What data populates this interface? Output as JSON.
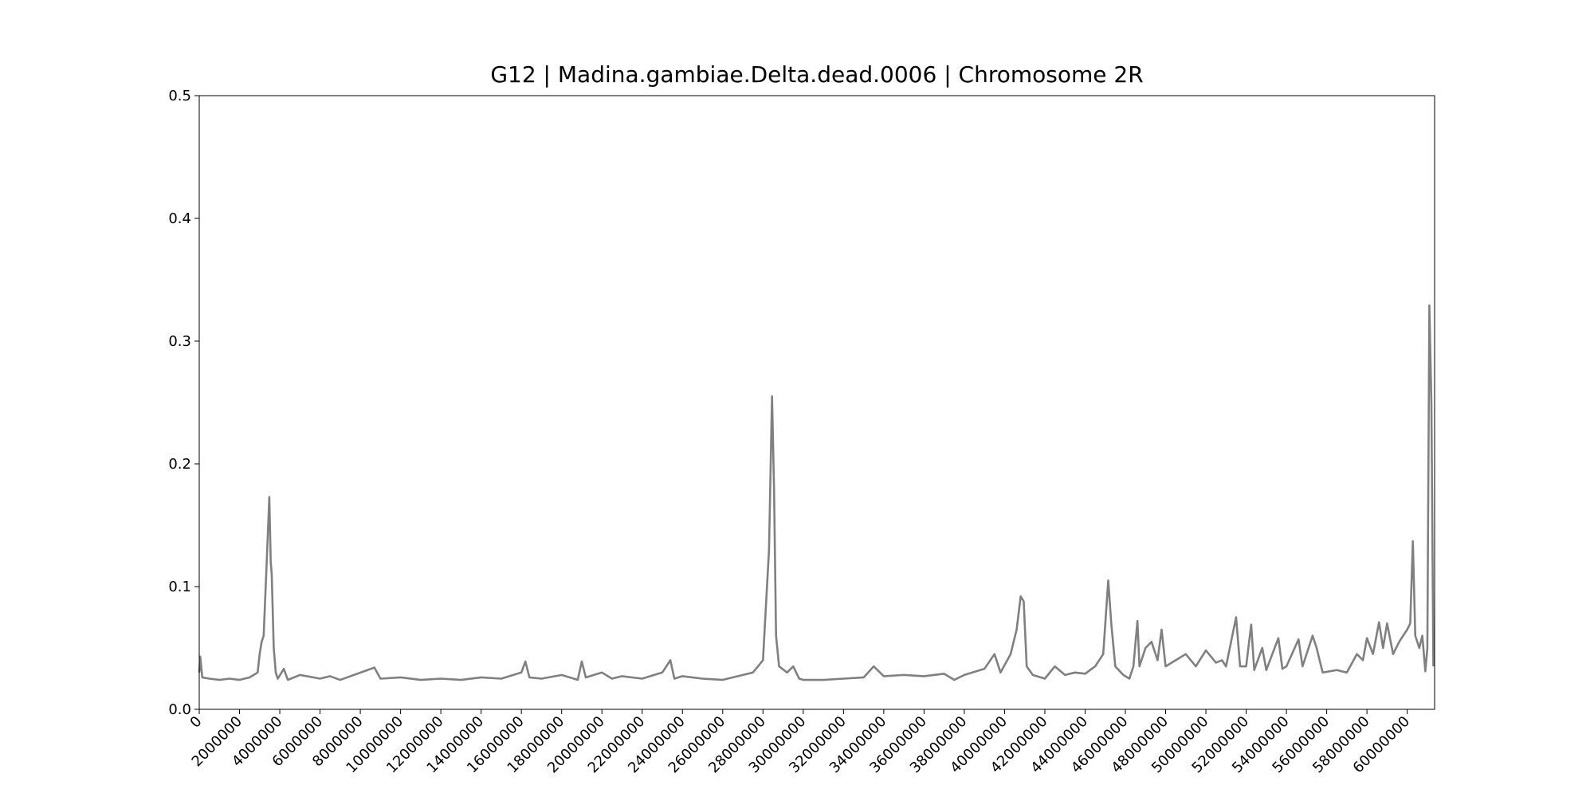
{
  "chart_data": {
    "type": "line",
    "title": "G12 | Madina.gambiae.Delta.dead.0006 | Chromosome 2R",
    "color": "#808080",
    "x": [
      0,
      50000,
      150000,
      500000,
      1000000,
      1500000,
      2000000,
      2500000,
      2900000,
      3000000,
      3100000,
      3200000,
      3300000,
      3400000,
      3480000,
      3550000,
      3600000,
      3700000,
      3800000,
      3900000,
      4200000,
      4400000,
      5000000,
      6000000,
      6500000,
      7000000,
      8700000,
      9000000,
      10000000,
      11000000,
      12000000,
      13000000,
      14000000,
      15000000,
      16000000,
      16200000,
      16400000,
      17000000,
      18000000,
      18800000,
      19000000,
      19200000,
      20000000,
      20500000,
      21000000,
      22000000,
      23000000,
      23400000,
      23600000,
      24000000,
      25000000,
      26000000,
      27000000,
      27500000,
      28000000,
      28300000,
      28450000,
      28550000,
      28650000,
      28800000,
      29200000,
      29500000,
      29800000,
      30000000,
      31000000,
      32000000,
      33000000,
      33500000,
      34000000,
      35000000,
      36000000,
      37000000,
      37500000,
      38000000,
      39000000,
      39500000,
      39800000,
      40300000,
      40600000,
      40800000,
      40950000,
      41100000,
      41400000,
      42000000,
      42500000,
      43000000,
      43500000,
      44000000,
      44500000,
      44900000,
      45150000,
      45300000,
      45500000,
      45900000,
      46200000,
      46400000,
      46600000,
      46700000,
      47000000,
      47300000,
      47600000,
      47800000,
      48000000,
      48500000,
      49000000,
      49500000,
      50000000,
      50500000,
      50800000,
      51000000,
      51500000,
      51700000,
      52000000,
      52250000,
      52400000,
      52800000,
      53000000,
      53600000,
      53800000,
      54000000,
      54600000,
      54800000,
      55300000,
      55500000,
      55800000,
      56500000,
      57000000,
      57500000,
      57800000,
      58000000,
      58300000,
      58600000,
      58800000,
      59000000,
      59300000,
      59600000,
      60000000,
      60150000,
      60280000,
      60400000,
      60600000,
      60750000,
      60900000,
      61000000,
      61100000,
      61200000,
      61300000
    ],
    "values": [
      0.03,
      0.043,
      0.026,
      0.025,
      0.024,
      0.025,
      0.024,
      0.026,
      0.03,
      0.045,
      0.055,
      0.06,
      0.1,
      0.14,
      0.173,
      0.12,
      0.11,
      0.05,
      0.03,
      0.025,
      0.033,
      0.024,
      0.028,
      0.025,
      0.027,
      0.024,
      0.034,
      0.025,
      0.026,
      0.024,
      0.025,
      0.024,
      0.026,
      0.025,
      0.03,
      0.039,
      0.026,
      0.025,
      0.028,
      0.024,
      0.039,
      0.026,
      0.03,
      0.025,
      0.027,
      0.025,
      0.03,
      0.04,
      0.025,
      0.027,
      0.025,
      0.024,
      0.028,
      0.03,
      0.04,
      0.13,
      0.255,
      0.18,
      0.06,
      0.035,
      0.03,
      0.035,
      0.025,
      0.024,
      0.024,
      0.025,
      0.026,
      0.035,
      0.027,
      0.028,
      0.027,
      0.029,
      0.024,
      0.028,
      0.033,
      0.045,
      0.03,
      0.045,
      0.065,
      0.092,
      0.088,
      0.035,
      0.028,
      0.025,
      0.035,
      0.028,
      0.03,
      0.029,
      0.035,
      0.045,
      0.105,
      0.07,
      0.035,
      0.028,
      0.025,
      0.035,
      0.072,
      0.035,
      0.05,
      0.055,
      0.04,
      0.065,
      0.035,
      0.04,
      0.045,
      0.035,
      0.048,
      0.038,
      0.04,
      0.035,
      0.075,
      0.035,
      0.035,
      0.069,
      0.032,
      0.05,
      0.032,
      0.058,
      0.033,
      0.035,
      0.057,
      0.035,
      0.06,
      0.05,
      0.03,
      0.032,
      0.03,
      0.045,
      0.04,
      0.058,
      0.045,
      0.071,
      0.05,
      0.07,
      0.045,
      0.055,
      0.065,
      0.07,
      0.137,
      0.06,
      0.05,
      0.06,
      0.031,
      0.05,
      0.329,
      0.25,
      0.035
    ],
    "xlim": [
      0,
      61360000
    ],
    "xticks": [
      0,
      2000000,
      4000000,
      6000000,
      8000000,
      10000000,
      12000000,
      14000000,
      16000000,
      18000000,
      20000000,
      22000000,
      24000000,
      26000000,
      28000000,
      30000000,
      32000000,
      34000000,
      36000000,
      38000000,
      40000000,
      42000000,
      44000000,
      46000000,
      48000000,
      50000000,
      52000000,
      54000000,
      56000000,
      58000000,
      60000000
    ],
    "ylim": [
      0,
      0.5
    ],
    "yticks": [
      {
        "value": 0,
        "label": "0.0"
      },
      0.1,
      0.2,
      0.3,
      0.4,
      0.5
    ],
    "grid": false
  }
}
